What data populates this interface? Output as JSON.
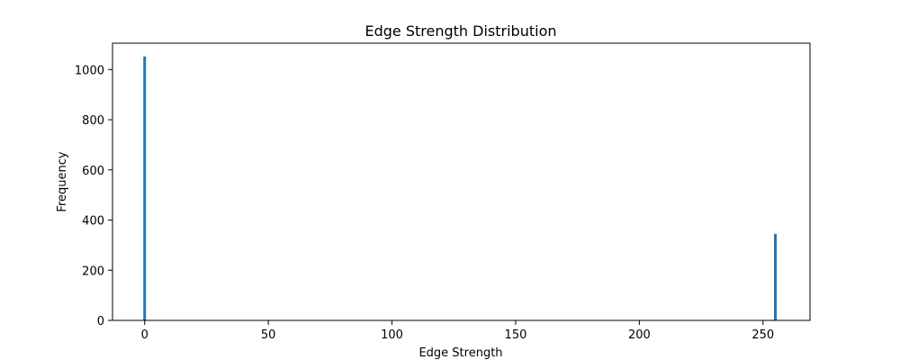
{
  "chart_data": {
    "type": "bar",
    "title": "Edge Strength Distribution",
    "xlabel": "Edge Strength",
    "ylabel": "Frequency",
    "xlim": [
      -13,
      269
    ],
    "ylim": [
      0,
      1105
    ],
    "xticks": [
      0,
      50,
      100,
      150,
      200,
      250
    ],
    "yticks": [
      0,
      200,
      400,
      600,
      800,
      1000
    ],
    "bin_width": 1,
    "bars": [
      {
        "x": 0,
        "value": 1052
      },
      {
        "x": 255,
        "value": 345
      }
    ],
    "bar_color": "#1f77b4",
    "grid": false,
    "legend": "none"
  }
}
